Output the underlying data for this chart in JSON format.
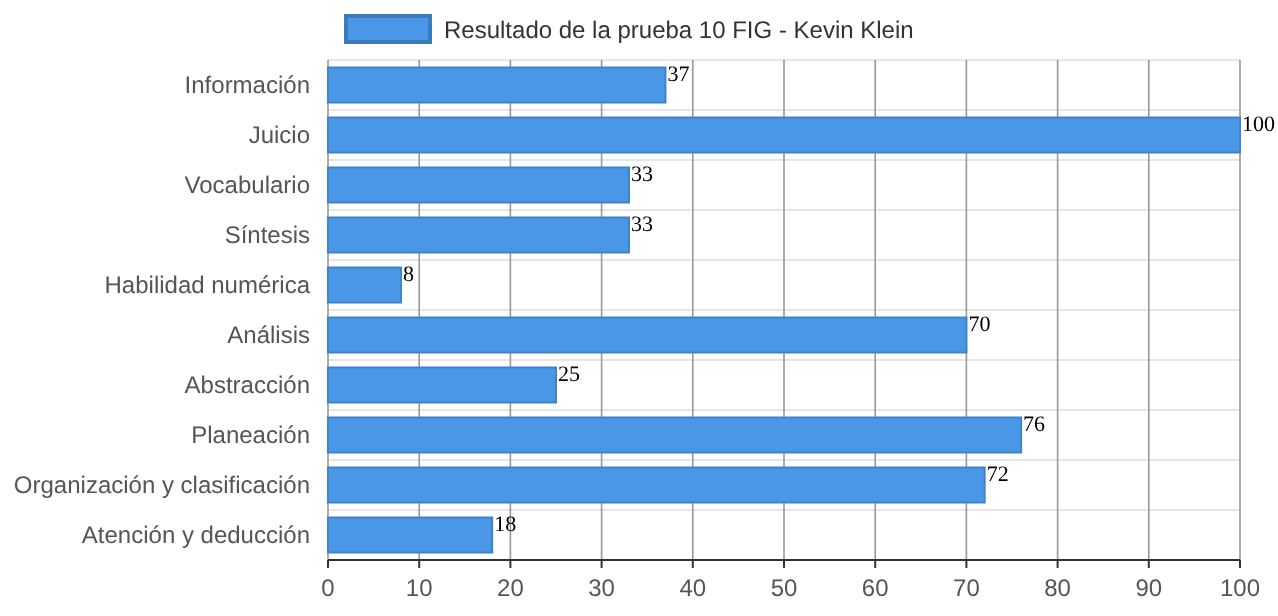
{
  "chart_data": {
    "type": "bar",
    "orientation": "horizontal",
    "categories": [
      "Información",
      "Juicio",
      "Vocabulario",
      "Síntesis",
      "Habilidad numérica",
      "Análisis",
      "Abstracción",
      "Planeación",
      "Organización y clasificación",
      "Atención y deducción"
    ],
    "series": [
      {
        "name": "Resultado de la prueba 10 FIG - Kevin Klein",
        "color": "#4a97e8",
        "values": [
          37,
          100,
          33,
          33,
          8,
          70,
          25,
          76,
          72,
          18
        ]
      }
    ],
    "xlim": [
      0,
      100
    ],
    "xticks": [
      0,
      10,
      20,
      30,
      40,
      50,
      60,
      70,
      80,
      90,
      100
    ],
    "grid": true,
    "legend": "top",
    "data_labels": true
  }
}
